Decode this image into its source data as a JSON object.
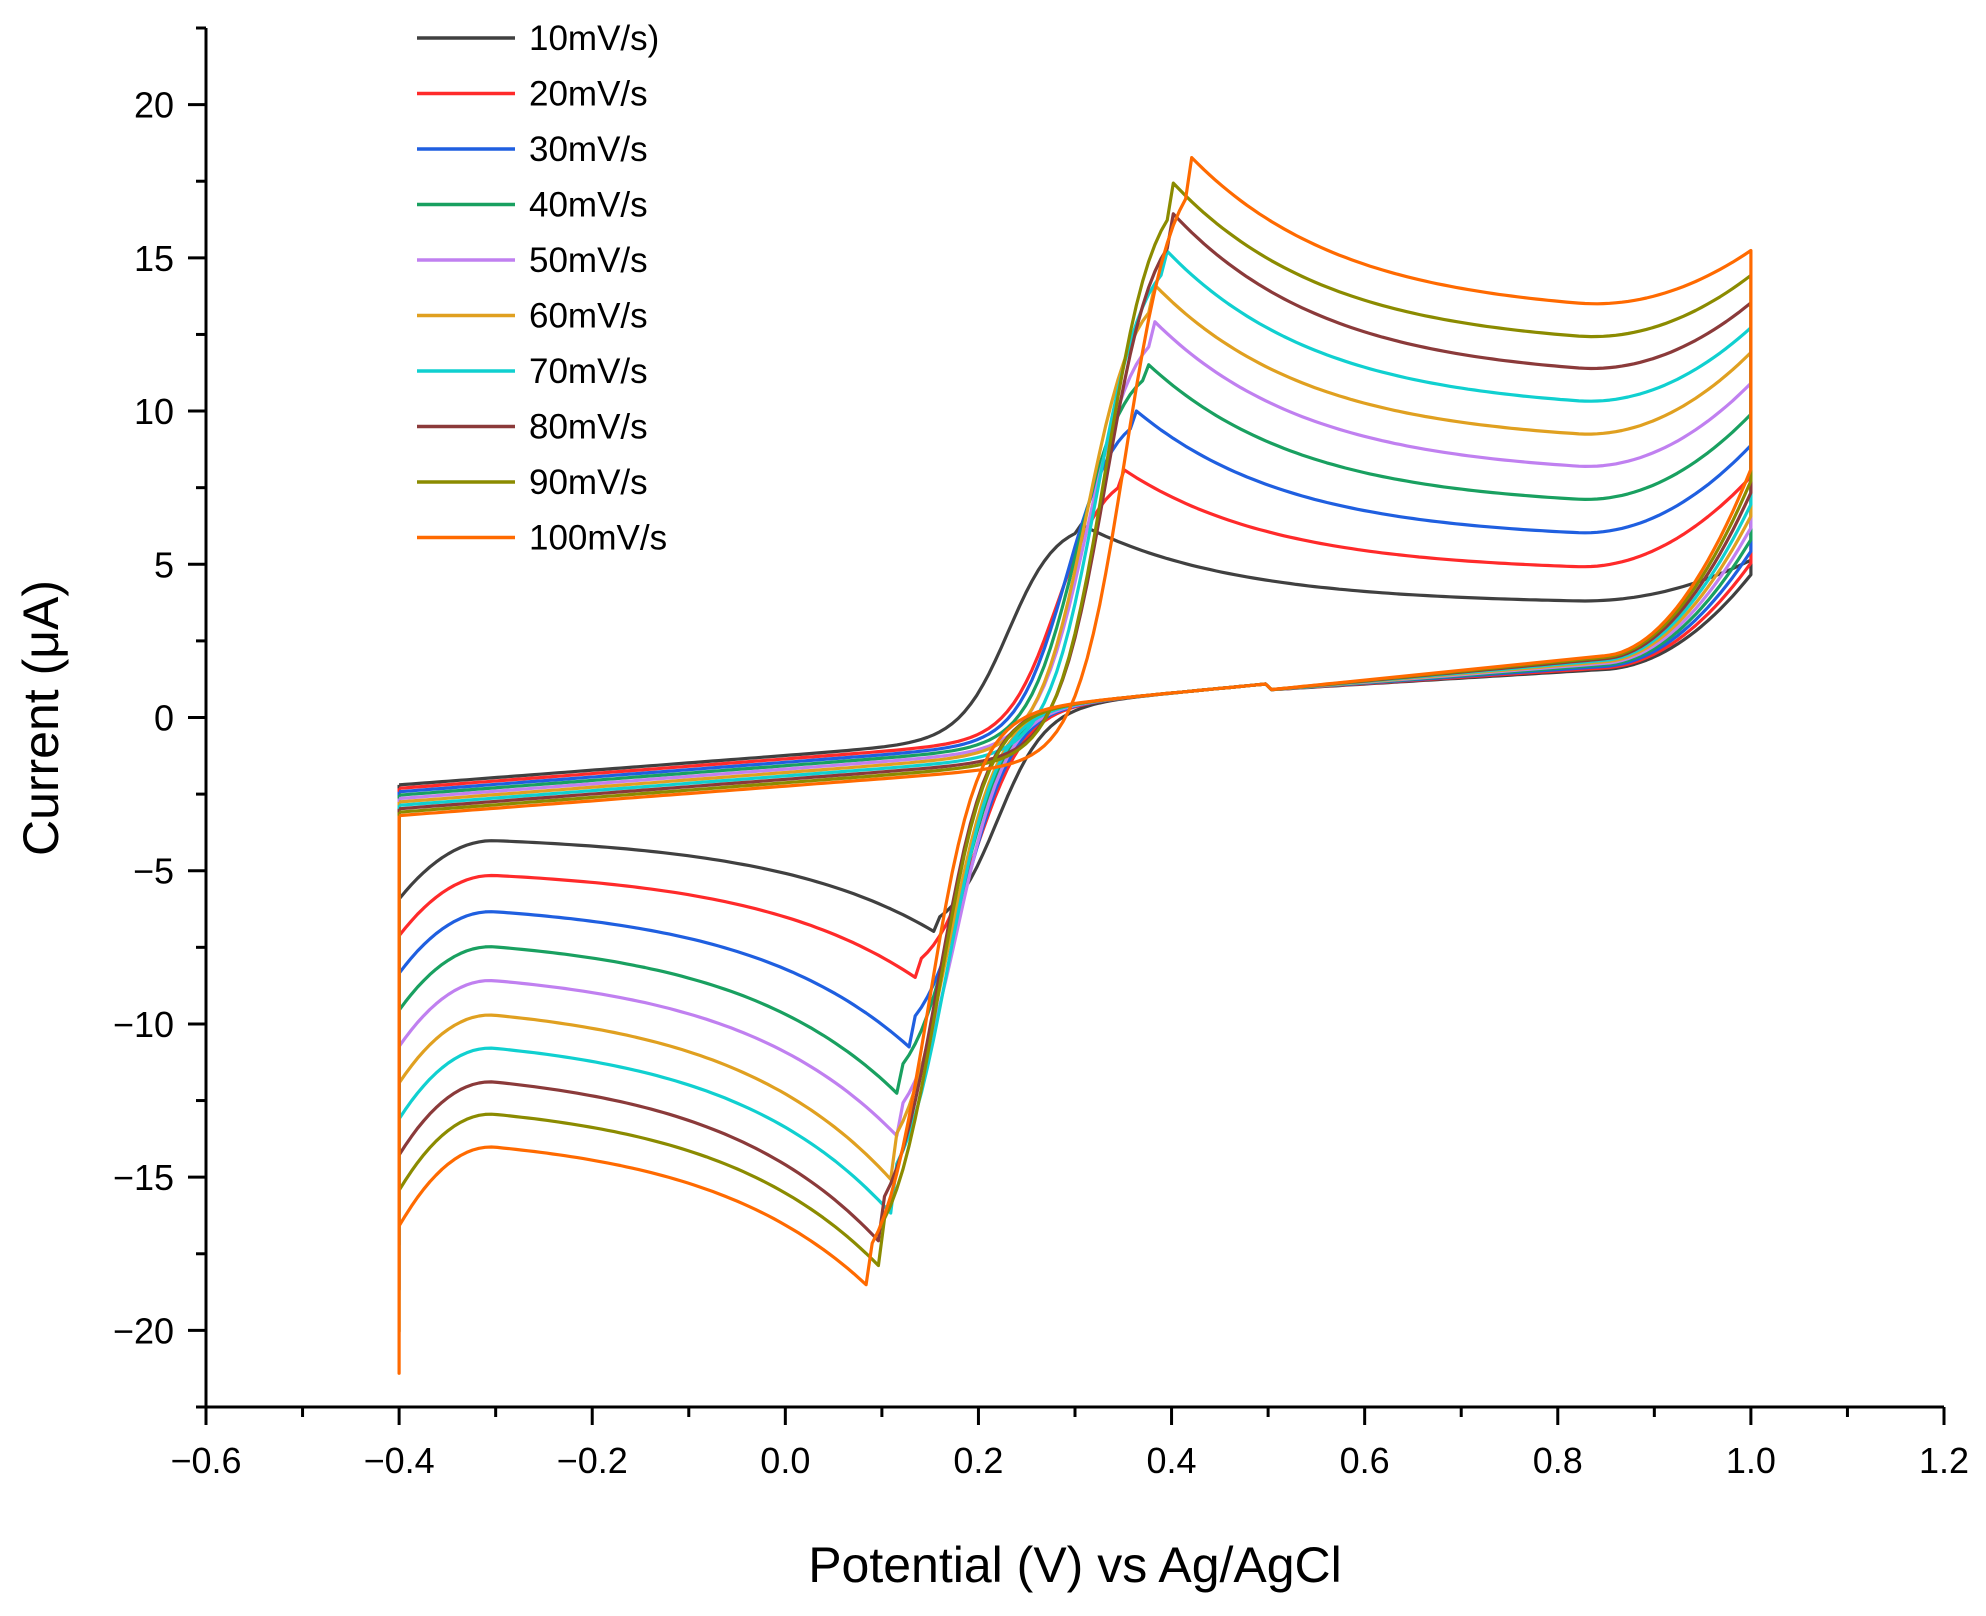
{
  "chart_data": {
    "type": "line",
    "subtype": "cyclic-voltammogram",
    "xlabel": "Potential (V) vs Ag/AgCl",
    "ylabel": "Current (μA)",
    "xlim": [
      -0.6,
      1.2
    ],
    "ylim": [
      -22.5,
      22.5
    ],
    "xticks": [
      -0.6,
      -0.4,
      -0.2,
      0.0,
      0.2,
      0.4,
      0.6,
      0.8,
      1.0,
      1.2
    ],
    "xtick_labels": [
      "−0.6",
      "−0.4",
      "−0.2",
      "0.0",
      "0.2",
      "0.4",
      "0.6",
      "0.8",
      "1.0",
      "1.2"
    ],
    "yticks": [
      -20,
      -15,
      -10,
      -5,
      0,
      5,
      10,
      15,
      20
    ],
    "ytick_labels": [
      "−20",
      "−15",
      "−10",
      "−5",
      "0",
      "5",
      "10",
      "15",
      "20"
    ],
    "grid": false,
    "legend_position": "top-left",
    "potential_window": [
      -0.4,
      1.0
    ],
    "series": [
      {
        "name": "10mV/s)",
        "color": "#404040",
        "anodic_peak": [
          0.3,
          6.4
        ],
        "cathodic_peak": [
          0.16,
          -7.1
        ],
        "upper_vertex": 5.1,
        "lower_vertex": -5.1
      },
      {
        "name": "20mV/s",
        "color": "#ff2a2a",
        "anodic_peak": [
          0.35,
          8.1
        ],
        "cathodic_peak": [
          0.14,
          -8.6
        ],
        "upper_vertex": 7.8,
        "lower_vertex": -6.8
      },
      {
        "name": "30mV/s",
        "color": "#1f5fe0",
        "anodic_peak": [
          0.36,
          10.1
        ],
        "cathodic_peak": [
          0.13,
          -10.8
        ],
        "upper_vertex": 8.8,
        "lower_vertex": -8.1
      },
      {
        "name": "40mV/s",
        "color": "#19a060",
        "anodic_peak": [
          0.37,
          11.7
        ],
        "cathodic_peak": [
          0.12,
          -12.4
        ],
        "upper_vertex": 9.8,
        "lower_vertex": -9.1
      },
      {
        "name": "50mV/s",
        "color": "#c080f0",
        "anodic_peak": [
          0.38,
          13.0
        ],
        "cathodic_peak": [
          0.12,
          -13.8
        ],
        "upper_vertex": 10.8,
        "lower_vertex": -10.2
      },
      {
        "name": "60mV/s",
        "color": "#e0a020",
        "anodic_peak": [
          0.38,
          14.2
        ],
        "cathodic_peak": [
          0.11,
          -15.1
        ],
        "upper_vertex": 11.8,
        "lower_vertex": -11.2
      },
      {
        "name": "70mV/s",
        "color": "#10d0d0",
        "anodic_peak": [
          0.39,
          15.4
        ],
        "cathodic_peak": [
          0.11,
          -16.2
        ],
        "upper_vertex": 12.6,
        "lower_vertex": -12.0
      },
      {
        "name": "80mV/s",
        "color": "#8b3a3a",
        "anodic_peak": [
          0.4,
          16.5
        ],
        "cathodic_peak": [
          0.1,
          -17.2
        ],
        "upper_vertex": 13.4,
        "lower_vertex": -12.8
      },
      {
        "name": "90mV/s",
        "color": "#8b8b00",
        "anodic_peak": [
          0.4,
          17.5
        ],
        "cathodic_peak": [
          0.1,
          -18.0
        ],
        "upper_vertex": 14.3,
        "lower_vertex": -13.5
      },
      {
        "name": "100mV/s",
        "color": "#ff6a00",
        "anodic_peak": [
          0.42,
          18.3
        ],
        "cathodic_peak": [
          0.09,
          -18.7
        ],
        "upper_vertex": 15.1,
        "lower_vertex": -14.2
      }
    ]
  }
}
